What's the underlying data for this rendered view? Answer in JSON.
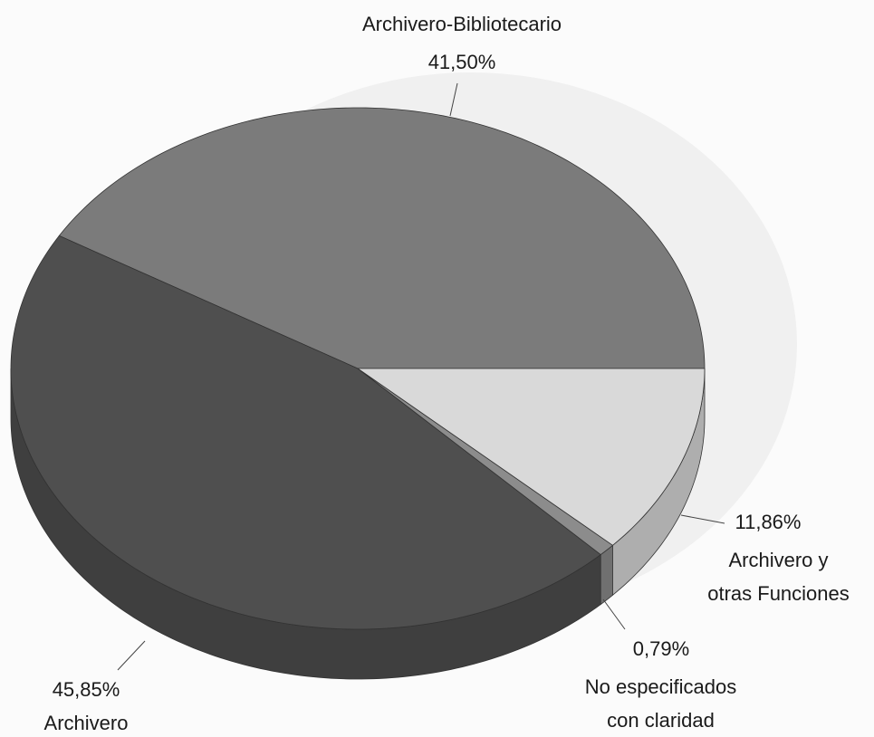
{
  "chart_data": {
    "type": "pie",
    "categories": [
      "Archivero-Bibliotecario",
      "Archivero",
      "No especificados con claridad",
      "Archivero y otras Funciones"
    ],
    "values": [
      41.5,
      45.85,
      0.79,
      11.86
    ],
    "value_labels": [
      "41,50%",
      "45,85%",
      "0,79%",
      "11,86%"
    ],
    "colors": [
      "#7b7b7b",
      "#4f4f4f",
      "#8c8c8c",
      "#d9d9d9"
    ],
    "start_angle": 0,
    "direction": "counterclockwise",
    "three_d": true
  }
}
